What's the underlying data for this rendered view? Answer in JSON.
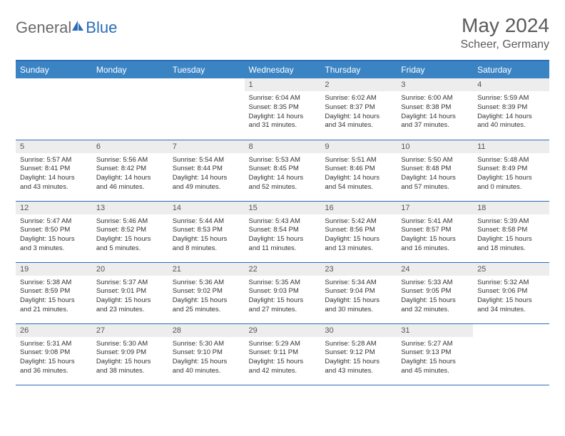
{
  "logo": {
    "part1": "General",
    "part2": "Blue"
  },
  "title": "May 2024",
  "location": "Scheer, Germany",
  "colors": {
    "header_bg": "#3b84c4",
    "header_border": "#2a6db8",
    "daynum_bg": "#ededed",
    "text": "#333333",
    "title_text": "#5a5a5a"
  },
  "weekdays": [
    "Sunday",
    "Monday",
    "Tuesday",
    "Wednesday",
    "Thursday",
    "Friday",
    "Saturday"
  ],
  "weeks": [
    [
      null,
      null,
      null,
      {
        "n": "1",
        "sunrise": "6:04 AM",
        "sunset": "8:35 PM",
        "h": "14",
        "m": "31"
      },
      {
        "n": "2",
        "sunrise": "6:02 AM",
        "sunset": "8:37 PM",
        "h": "14",
        "m": "34"
      },
      {
        "n": "3",
        "sunrise": "6:00 AM",
        "sunset": "8:38 PM",
        "h": "14",
        "m": "37"
      },
      {
        "n": "4",
        "sunrise": "5:59 AM",
        "sunset": "8:39 PM",
        "h": "14",
        "m": "40"
      }
    ],
    [
      {
        "n": "5",
        "sunrise": "5:57 AM",
        "sunset": "8:41 PM",
        "h": "14",
        "m": "43"
      },
      {
        "n": "6",
        "sunrise": "5:56 AM",
        "sunset": "8:42 PM",
        "h": "14",
        "m": "46"
      },
      {
        "n": "7",
        "sunrise": "5:54 AM",
        "sunset": "8:44 PM",
        "h": "14",
        "m": "49"
      },
      {
        "n": "8",
        "sunrise": "5:53 AM",
        "sunset": "8:45 PM",
        "h": "14",
        "m": "52"
      },
      {
        "n": "9",
        "sunrise": "5:51 AM",
        "sunset": "8:46 PM",
        "h": "14",
        "m": "54"
      },
      {
        "n": "10",
        "sunrise": "5:50 AM",
        "sunset": "8:48 PM",
        "h": "14",
        "m": "57"
      },
      {
        "n": "11",
        "sunrise": "5:48 AM",
        "sunset": "8:49 PM",
        "h": "15",
        "m": "0"
      }
    ],
    [
      {
        "n": "12",
        "sunrise": "5:47 AM",
        "sunset": "8:50 PM",
        "h": "15",
        "m": "3"
      },
      {
        "n": "13",
        "sunrise": "5:46 AM",
        "sunset": "8:52 PM",
        "h": "15",
        "m": "5"
      },
      {
        "n": "14",
        "sunrise": "5:44 AM",
        "sunset": "8:53 PM",
        "h": "15",
        "m": "8"
      },
      {
        "n": "15",
        "sunrise": "5:43 AM",
        "sunset": "8:54 PM",
        "h": "15",
        "m": "11"
      },
      {
        "n": "16",
        "sunrise": "5:42 AM",
        "sunset": "8:56 PM",
        "h": "15",
        "m": "13"
      },
      {
        "n": "17",
        "sunrise": "5:41 AM",
        "sunset": "8:57 PM",
        "h": "15",
        "m": "16"
      },
      {
        "n": "18",
        "sunrise": "5:39 AM",
        "sunset": "8:58 PM",
        "h": "15",
        "m": "18"
      }
    ],
    [
      {
        "n": "19",
        "sunrise": "5:38 AM",
        "sunset": "8:59 PM",
        "h": "15",
        "m": "21"
      },
      {
        "n": "20",
        "sunrise": "5:37 AM",
        "sunset": "9:01 PM",
        "h": "15",
        "m": "23"
      },
      {
        "n": "21",
        "sunrise": "5:36 AM",
        "sunset": "9:02 PM",
        "h": "15",
        "m": "25"
      },
      {
        "n": "22",
        "sunrise": "5:35 AM",
        "sunset": "9:03 PM",
        "h": "15",
        "m": "27"
      },
      {
        "n": "23",
        "sunrise": "5:34 AM",
        "sunset": "9:04 PM",
        "h": "15",
        "m": "30"
      },
      {
        "n": "24",
        "sunrise": "5:33 AM",
        "sunset": "9:05 PM",
        "h": "15",
        "m": "32"
      },
      {
        "n": "25",
        "sunrise": "5:32 AM",
        "sunset": "9:06 PM",
        "h": "15",
        "m": "34"
      }
    ],
    [
      {
        "n": "26",
        "sunrise": "5:31 AM",
        "sunset": "9:08 PM",
        "h": "15",
        "m": "36"
      },
      {
        "n": "27",
        "sunrise": "5:30 AM",
        "sunset": "9:09 PM",
        "h": "15",
        "m": "38"
      },
      {
        "n": "28",
        "sunrise": "5:30 AM",
        "sunset": "9:10 PM",
        "h": "15",
        "m": "40"
      },
      {
        "n": "29",
        "sunrise": "5:29 AM",
        "sunset": "9:11 PM",
        "h": "15",
        "m": "42"
      },
      {
        "n": "30",
        "sunrise": "5:28 AM",
        "sunset": "9:12 PM",
        "h": "15",
        "m": "43"
      },
      {
        "n": "31",
        "sunrise": "5:27 AM",
        "sunset": "9:13 PM",
        "h": "15",
        "m": "45"
      },
      null
    ]
  ]
}
